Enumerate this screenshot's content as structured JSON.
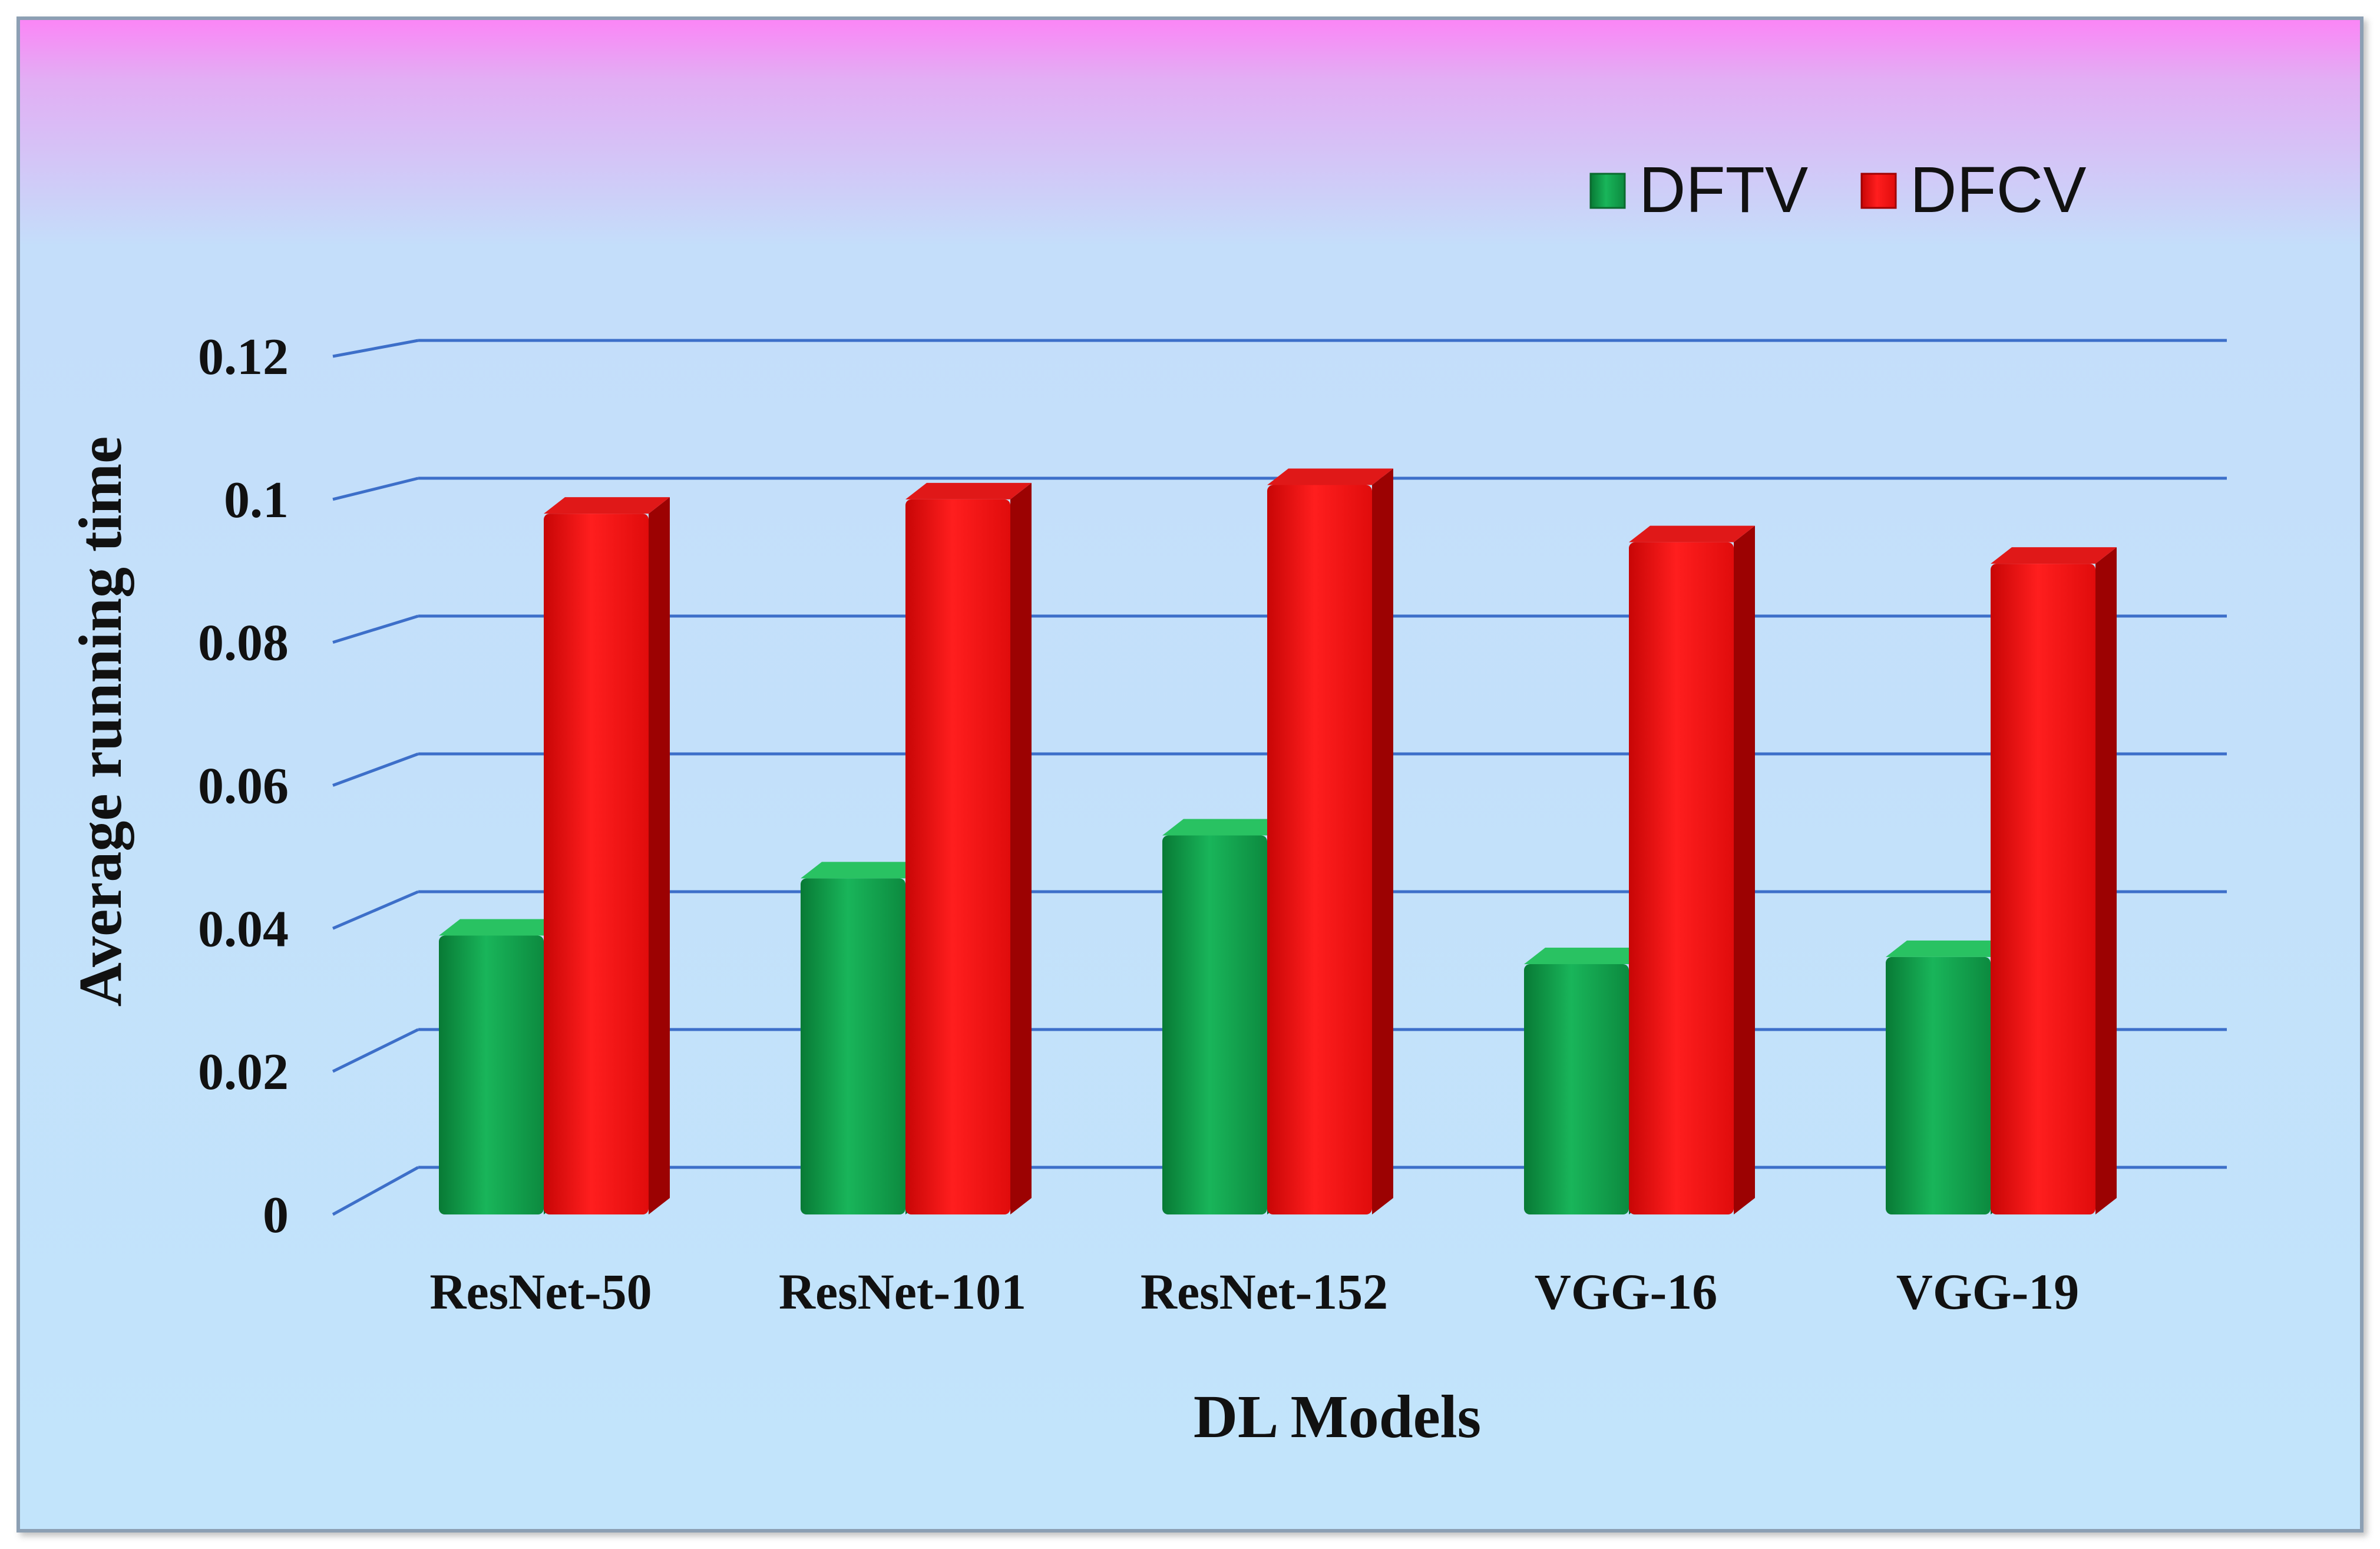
{
  "chart_data": {
    "type": "bar",
    "title": "",
    "xlabel": "DL Models",
    "ylabel": "Average running time",
    "categories": [
      "ResNet-50",
      "ResNet-101",
      "ResNet-152",
      "VGG-16",
      "VGG-19"
    ],
    "series": [
      {
        "name": "DFTV",
        "values": [
          0.039,
          0.047,
          0.053,
          0.035,
          0.036
        ]
      },
      {
        "name": "DFCV",
        "values": [
          0.098,
          0.1,
          0.102,
          0.094,
          0.091
        ]
      }
    ],
    "ylim": [
      0,
      0.12
    ],
    "yticks": [
      "0",
      "0.02",
      "0.04",
      "0.06",
      "0.08",
      "0.1",
      "0.12"
    ],
    "grid": true,
    "legend_position": "top-right",
    "colors": {
      "DFTV": "#0fa04a",
      "DFCV": "#f01010",
      "gridline": "#3d6fc9",
      "background": "#c2e4fb"
    }
  }
}
